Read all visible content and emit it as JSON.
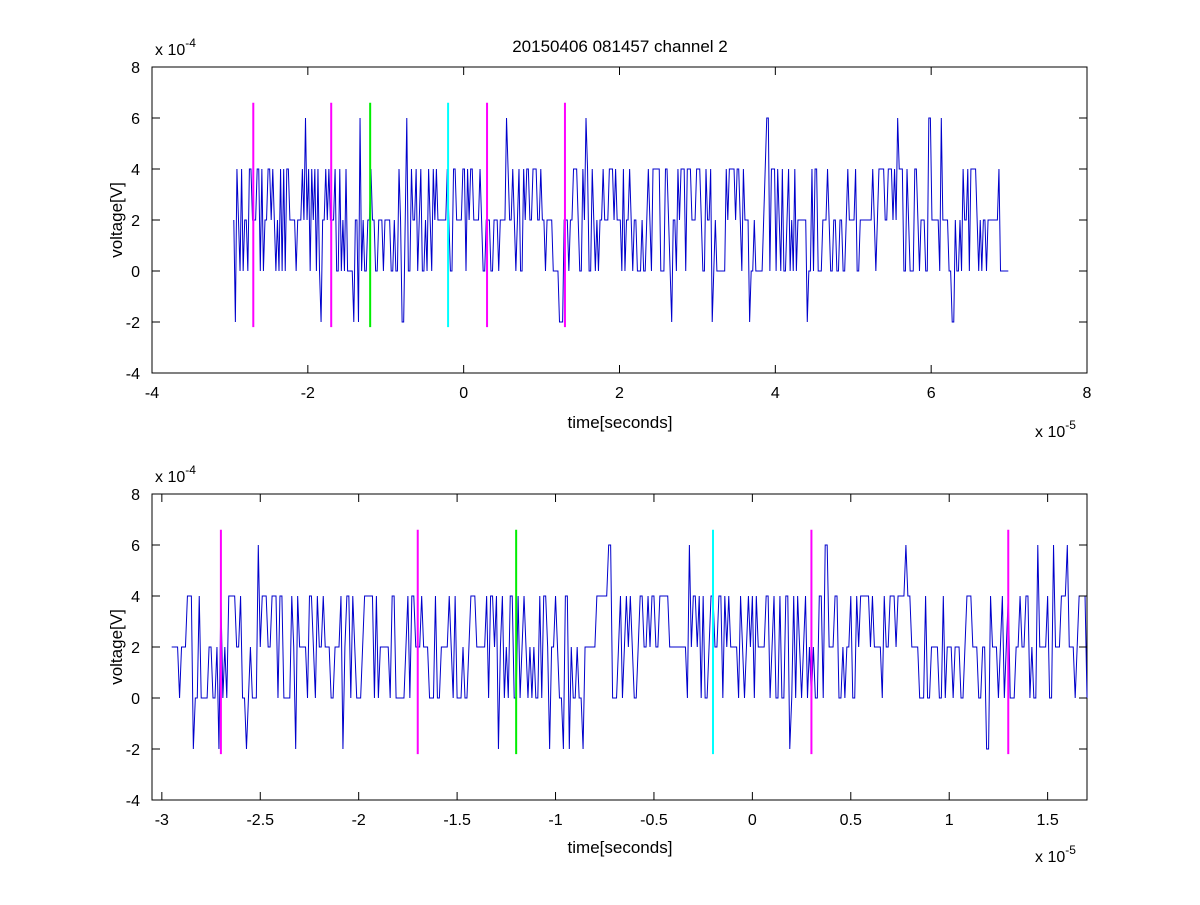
{
  "figure": {
    "title": "20150406 081457 channel 2"
  },
  "chart_data": [
    {
      "type": "line",
      "title": "20150406 081457 channel 2",
      "xlabel": "time[seconds]",
      "ylabel": "voltage[V]",
      "x_exponent": "x 10",
      "x_exponent_power": "-5",
      "y_exponent": "x 10",
      "y_exponent_power": "-4",
      "xlim": [
        -4,
        8
      ],
      "ylim": [
        -4,
        8
      ],
      "xticks": [
        -4,
        -2,
        0,
        2,
        4,
        6,
        8
      ],
      "xtick_labels": [
        "-4",
        "-2",
        "0",
        "2",
        "4",
        "6",
        "8"
      ],
      "yticks": [
        -4,
        -2,
        0,
        2,
        4,
        6,
        8
      ],
      "ytick_labels": [
        "-4",
        "-2",
        "0",
        "2",
        "4",
        "6",
        "8"
      ],
      "grid": false,
      "signal": {
        "color": "#0000cc",
        "x_range": [
          -2.95,
          7.0
        ],
        "step": 0.02,
        "levels": [
          -2,
          0,
          2,
          4,
          6
        ],
        "seed": 17
      },
      "markers": [
        {
          "x": -2.7,
          "color": "#ff00ff",
          "ymin": -2.2,
          "ymax": 6.6
        },
        {
          "x": -1.7,
          "color": "#ff00ff",
          "ymin": -2.2,
          "ymax": 6.6
        },
        {
          "x": -1.2,
          "color": "#00ee00",
          "ymin": -2.2,
          "ymax": 6.6
        },
        {
          "x": -0.2,
          "color": "#00ffff",
          "ymin": -2.2,
          "ymax": 6.6
        },
        {
          "x": 0.3,
          "color": "#ff00ff",
          "ymin": -2.2,
          "ymax": 6.6
        },
        {
          "x": 1.3,
          "color": "#ff00ff",
          "ymin": -2.2,
          "ymax": 6.6
        }
      ]
    },
    {
      "type": "line",
      "title": "",
      "xlabel": "time[seconds]",
      "ylabel": "voltage[V]",
      "x_exponent": "x 10",
      "x_exponent_power": "-5",
      "y_exponent": "x 10",
      "y_exponent_power": "-4",
      "xlim": [
        -3.05,
        1.7
      ],
      "ylim": [
        -4,
        8
      ],
      "xticks": [
        -3,
        -2.5,
        -2,
        -1.5,
        -1,
        -0.5,
        0,
        0.5,
        1,
        1.5
      ],
      "xtick_labels": [
        "-3",
        "-2.5",
        "-2",
        "-1.5",
        "-1",
        "-0.5",
        "0",
        "0.5",
        "1",
        "1.5"
      ],
      "yticks": [
        -4,
        -2,
        0,
        2,
        4,
        6,
        8
      ],
      "ytick_labels": [
        "-4",
        "-2",
        "0",
        "2",
        "4",
        "6",
        "8"
      ],
      "grid": false,
      "signal": {
        "color": "#0000cc",
        "x_range": [
          -2.95,
          1.7
        ],
        "step": 0.01,
        "levels": [
          -2,
          0,
          2,
          4,
          6
        ],
        "seed": 41
      },
      "markers": [
        {
          "x": -2.7,
          "color": "#ff00ff",
          "ymin": -2.2,
          "ymax": 6.6
        },
        {
          "x": -1.7,
          "color": "#ff00ff",
          "ymin": -2.2,
          "ymax": 6.6
        },
        {
          "x": -1.2,
          "color": "#00ee00",
          "ymin": -2.2,
          "ymax": 6.6
        },
        {
          "x": -0.2,
          "color": "#00ffff",
          "ymin": -2.2,
          "ymax": 6.6
        },
        {
          "x": 0.3,
          "color": "#ff00ff",
          "ymin": -2.2,
          "ymax": 6.6
        },
        {
          "x": 1.3,
          "color": "#ff00ff",
          "ymin": -2.2,
          "ymax": 6.6
        }
      ]
    }
  ]
}
